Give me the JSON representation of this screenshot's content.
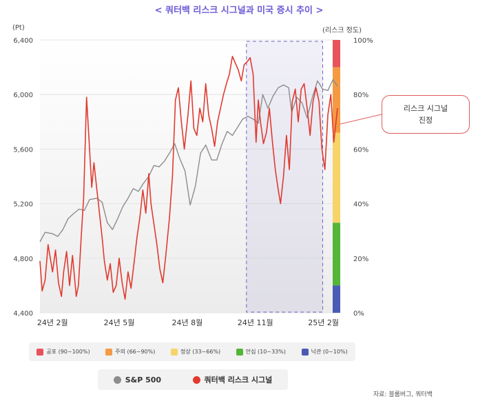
{
  "title": "< 쿼터백 리스크 시그널과 미국 증시 추이 >",
  "left_axis_unit": "(Pt)",
  "right_axis_unit": "(리스크 정도)",
  "callout": {
    "line1": "리스크 시그널",
    "line2": "진정"
  },
  "legend_bands": [
    {
      "label": "공포 (90~100%)",
      "color": "#e8525a"
    },
    {
      "label": "주의 (66~90%)",
      "color": "#f59a42"
    },
    {
      "label": "정상 (33~66%)",
      "color": "#f7d36a"
    },
    {
      "label": "안심 (10~33%)",
      "color": "#54b538"
    },
    {
      "label": "낙관 (0~10%)",
      "color": "#4a5bb5"
    }
  ],
  "series_legend": [
    {
      "label": "S&P 500",
      "color": "#8c8c8c"
    },
    {
      "label": "쿼터백 리스크 시그널",
      "color": "#e03a2f"
    }
  ],
  "source": "자료: 블룸버그, 쿼터백",
  "chart_data": {
    "type": "line",
    "title": "< 쿼터백 리스크 시그널과 미국 증시 추이 >",
    "x_tick_labels": [
      "24년 2월",
      "24년 5월",
      "24년 8월",
      "24년 11월",
      "25년 2월"
    ],
    "x_tick_dates": [
      "2024-02-01",
      "2024-05-01",
      "2024-08-01",
      "2024-11-01",
      "2025-02-01"
    ],
    "x_range": [
      "2024-01-15",
      "2025-02-20"
    ],
    "y_left": {
      "label": "(Pt)",
      "range": [
        4400,
        6400
      ],
      "ticks": [
        "4,400",
        "4,800",
        "5,200",
        "5,600",
        "6,000",
        "6,400"
      ],
      "tick_values": [
        4400,
        4800,
        5200,
        5600,
        6000,
        6400
      ]
    },
    "y_right": {
      "label": "(리스크 정도)",
      "range": [
        0,
        100
      ],
      "ticks": [
        "0%",
        "20%",
        "40%",
        "60%",
        "80%",
        "100%"
      ],
      "tick_values": [
        0,
        20,
        40,
        60,
        80,
        100
      ]
    },
    "risk_bands": [
      {
        "name": "공포",
        "from": 90,
        "to": 100,
        "color": "#e8525a"
      },
      {
        "name": "주의",
        "from": 66,
        "to": 90,
        "color": "#f59a42"
      },
      {
        "name": "정상",
        "from": 33,
        "to": 66,
        "color": "#f7d36a"
      },
      {
        "name": "안심",
        "from": 10,
        "to": 33,
        "color": "#54b538"
      },
      {
        "name": "낙관",
        "from": 0,
        "to": 10,
        "color": "#4a5bb5"
      }
    ],
    "highlight_range": [
      "2024-10-20",
      "2025-01-31"
    ],
    "series": [
      {
        "name": "S&P 500",
        "axis": "left",
        "color": "#8c8c8c",
        "points": [
          [
            "2024-01-15",
            4920
          ],
          [
            "2024-01-22",
            4990
          ],
          [
            "2024-02-01",
            4980
          ],
          [
            "2024-02-08",
            4960
          ],
          [
            "2024-02-15",
            5010
          ],
          [
            "2024-02-22",
            5090
          ],
          [
            "2024-03-01",
            5130
          ],
          [
            "2024-03-08",
            5160
          ],
          [
            "2024-03-15",
            5150
          ],
          [
            "2024-03-22",
            5230
          ],
          [
            "2024-04-01",
            5240
          ],
          [
            "2024-04-08",
            5210
          ],
          [
            "2024-04-15",
            5060
          ],
          [
            "2024-04-22",
            5010
          ],
          [
            "2024-04-29",
            5090
          ],
          [
            "2024-05-06",
            5180
          ],
          [
            "2024-05-13",
            5240
          ],
          [
            "2024-05-20",
            5310
          ],
          [
            "2024-05-27",
            5290
          ],
          [
            "2024-06-03",
            5350
          ],
          [
            "2024-06-10",
            5400
          ],
          [
            "2024-06-17",
            5480
          ],
          [
            "2024-06-24",
            5470
          ],
          [
            "2024-07-01",
            5510
          ],
          [
            "2024-07-08",
            5570
          ],
          [
            "2024-07-15",
            5640
          ],
          [
            "2024-07-22",
            5530
          ],
          [
            "2024-07-29",
            5440
          ],
          [
            "2024-08-05",
            5190
          ],
          [
            "2024-08-12",
            5330
          ],
          [
            "2024-08-19",
            5570
          ],
          [
            "2024-08-26",
            5630
          ],
          [
            "2024-09-03",
            5520
          ],
          [
            "2024-09-10",
            5520
          ],
          [
            "2024-09-17",
            5640
          ],
          [
            "2024-09-24",
            5730
          ],
          [
            "2024-10-01",
            5700
          ],
          [
            "2024-10-08",
            5760
          ],
          [
            "2024-10-15",
            5820
          ],
          [
            "2024-10-22",
            5840
          ],
          [
            "2024-10-29",
            5820
          ],
          [
            "2024-11-05",
            5790
          ],
          [
            "2024-11-11",
            6000
          ],
          [
            "2024-11-18",
            5900
          ],
          [
            "2024-11-25",
            5990
          ],
          [
            "2024-12-02",
            6050
          ],
          [
            "2024-12-09",
            6070
          ],
          [
            "2024-12-16",
            6050
          ],
          [
            "2024-12-20",
            5870
          ],
          [
            "2024-12-27",
            5980
          ],
          [
            "2025-01-03",
            5940
          ],
          [
            "2025-01-10",
            5830
          ],
          [
            "2025-01-17",
            5980
          ],
          [
            "2025-01-24",
            6100
          ],
          [
            "2025-01-31",
            6040
          ],
          [
            "2025-02-07",
            6030
          ],
          [
            "2025-02-14",
            6110
          ],
          [
            "2025-02-20",
            6060
          ]
        ]
      },
      {
        "name": "쿼터백 리스크 시그널",
        "axis": "left",
        "color": "#e03a2f",
        "points": [
          [
            "2024-01-15",
            4780
          ],
          [
            "2024-01-18",
            4560
          ],
          [
            "2024-01-22",
            4640
          ],
          [
            "2024-01-26",
            4900
          ],
          [
            "2024-02-01",
            4700
          ],
          [
            "2024-02-05",
            4860
          ],
          [
            "2024-02-09",
            4620
          ],
          [
            "2024-02-13",
            4520
          ],
          [
            "2024-02-16",
            4700
          ],
          [
            "2024-02-20",
            4850
          ],
          [
            "2024-02-24",
            4600
          ],
          [
            "2024-02-28",
            4820
          ],
          [
            "2024-03-04",
            4520
          ],
          [
            "2024-03-07",
            4600
          ],
          [
            "2024-03-11",
            4980
          ],
          [
            "2024-03-14",
            5240
          ],
          [
            "2024-03-18",
            5980
          ],
          [
            "2024-03-21",
            5700
          ],
          [
            "2024-03-25",
            5320
          ],
          [
            "2024-03-28",
            5500
          ],
          [
            "2024-04-01",
            5300
          ],
          [
            "2024-04-04",
            5150
          ],
          [
            "2024-04-08",
            4950
          ],
          [
            "2024-04-11",
            4780
          ],
          [
            "2024-04-15",
            4640
          ],
          [
            "2024-04-19",
            4760
          ],
          [
            "2024-04-23",
            4550
          ],
          [
            "2024-04-27",
            4600
          ],
          [
            "2024-05-01",
            4800
          ],
          [
            "2024-05-05",
            4620
          ],
          [
            "2024-05-09",
            4500
          ],
          [
            "2024-05-13",
            4700
          ],
          [
            "2024-05-17",
            4580
          ],
          [
            "2024-05-21",
            4760
          ],
          [
            "2024-05-25",
            4950
          ],
          [
            "2024-05-29",
            5100
          ],
          [
            "2024-06-02",
            5300
          ],
          [
            "2024-06-06",
            5130
          ],
          [
            "2024-06-10",
            5420
          ],
          [
            "2024-06-13",
            5200
          ],
          [
            "2024-06-17",
            5050
          ],
          [
            "2024-06-21",
            4900
          ],
          [
            "2024-06-25",
            4720
          ],
          [
            "2024-06-29",
            4620
          ],
          [
            "2024-07-03",
            4820
          ],
          [
            "2024-07-08",
            5100
          ],
          [
            "2024-07-12",
            5400
          ],
          [
            "2024-07-16",
            5960
          ],
          [
            "2024-07-20",
            6050
          ],
          [
            "2024-07-24",
            5800
          ],
          [
            "2024-07-28",
            5600
          ],
          [
            "2024-08-02",
            5850
          ],
          [
            "2024-08-06",
            6100
          ],
          [
            "2024-08-10",
            5750
          ],
          [
            "2024-08-14",
            5700
          ],
          [
            "2024-08-18",
            5900
          ],
          [
            "2024-08-22",
            5800
          ],
          [
            "2024-08-26",
            6080
          ],
          [
            "2024-08-30",
            5850
          ],
          [
            "2024-09-03",
            5750
          ],
          [
            "2024-09-07",
            5620
          ],
          [
            "2024-09-11",
            5800
          ],
          [
            "2024-09-15",
            5900
          ],
          [
            "2024-09-19",
            6000
          ],
          [
            "2024-09-23",
            6080
          ],
          [
            "2024-09-27",
            6150
          ],
          [
            "2024-10-01",
            6280
          ],
          [
            "2024-10-05",
            6230
          ],
          [
            "2024-10-09",
            6180
          ],
          [
            "2024-10-13",
            6100
          ],
          [
            "2024-10-17",
            6220
          ],
          [
            "2024-10-21",
            6240
          ],
          [
            "2024-10-25",
            6270
          ],
          [
            "2024-10-29",
            6150
          ],
          [
            "2024-11-02",
            5650
          ],
          [
            "2024-11-05",
            5960
          ],
          [
            "2024-11-08",
            5800
          ],
          [
            "2024-11-12",
            5640
          ],
          [
            "2024-11-16",
            5720
          ],
          [
            "2024-11-20",
            5900
          ],
          [
            "2024-11-24",
            5660
          ],
          [
            "2024-11-28",
            5450
          ],
          [
            "2024-12-02",
            5300
          ],
          [
            "2024-12-05",
            5200
          ],
          [
            "2024-12-09",
            5400
          ],
          [
            "2024-12-13",
            5700
          ],
          [
            "2024-12-17",
            5450
          ],
          [
            "2024-12-21",
            5950
          ],
          [
            "2024-12-25",
            6040
          ],
          [
            "2024-12-29",
            5800
          ],
          [
            "2025-01-02",
            6040
          ],
          [
            "2025-01-06",
            6080
          ],
          [
            "2025-01-10",
            5900
          ],
          [
            "2025-01-14",
            5700
          ],
          [
            "2025-01-18",
            5950
          ],
          [
            "2025-01-22",
            6050
          ],
          [
            "2025-01-26",
            5950
          ],
          [
            "2025-01-30",
            5600
          ],
          [
            "2025-02-03",
            5450
          ],
          [
            "2025-02-07",
            5850
          ],
          [
            "2025-02-11",
            6000
          ],
          [
            "2025-02-15",
            5650
          ],
          [
            "2025-02-20",
            5900
          ]
        ]
      }
    ]
  }
}
